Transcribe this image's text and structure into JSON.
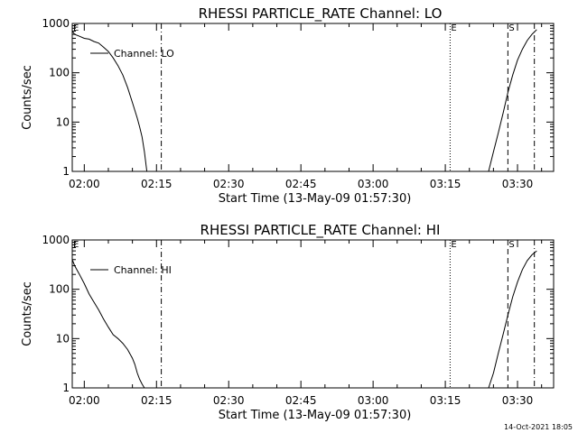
{
  "chart_data": [
    {
      "type": "line",
      "title": "RHESSI PARTICLE_RATE Channel: LO",
      "xlabel": "Start Time (13-May-09 01:57:30)",
      "ylabel": "Counts/sec",
      "yscale": "log",
      "ylim": [
        1,
        1000
      ],
      "xlim": [
        "01:57:30",
        "03:37:30"
      ],
      "x_ticks": [
        "02:00",
        "02:15",
        "02:30",
        "02:45",
        "03:00",
        "03:15",
        "03:30"
      ],
      "y_ticks": [
        "1",
        "10",
        "100",
        "1000"
      ],
      "legend": {
        "label": "Channel: LO",
        "placement": "top-left"
      },
      "markers": [
        {
          "label": "E",
          "time": "01:57:30",
          "style": "dotted"
        },
        {
          "label": "",
          "time": "02:16:00",
          "style": "dash-dot"
        },
        {
          "label": "E",
          "time": "03:16:00",
          "style": "dotted"
        },
        {
          "label": "S",
          "time": "03:28:00",
          "style": "dashed"
        },
        {
          "label": "",
          "time": "03:33:30",
          "style": "dash-dot"
        }
      ],
      "segments": [
        {
          "x": [
            "01:57:30",
            "01:58:00",
            "01:59:00",
            "02:00:00",
            "02:01:00",
            "02:02:00",
            "02:03:00",
            "02:04:00",
            "02:05:00",
            "02:06:00",
            "02:07:00",
            "02:08:00",
            "02:09:00",
            "02:10:00",
            "02:11:00",
            "02:11:30",
            "02:12:00",
            "02:12:30",
            "02:13:00"
          ],
          "y": [
            700,
            600,
            550,
            500,
            480,
            430,
            400,
            330,
            270,
            200,
            140,
            90,
            50,
            25,
            12,
            8,
            5,
            2.5,
            1
          ]
        },
        {
          "x": [
            "03:24:00",
            "03:25:00",
            "03:26:00",
            "03:27:00",
            "03:28:00",
            "03:29:00",
            "03:30:00",
            "03:31:00",
            "03:32:00",
            "03:33:00",
            "03:34:00"
          ],
          "y": [
            1,
            2.5,
            6,
            15,
            40,
            90,
            180,
            300,
            450,
            600,
            750
          ]
        }
      ]
    },
    {
      "type": "line",
      "title": "RHESSI PARTICLE_RATE Channel: HI",
      "xlabel": "Start Time (13-May-09 01:57:30)",
      "ylabel": "Counts/sec",
      "yscale": "log",
      "ylim": [
        1,
        1000
      ],
      "xlim": [
        "01:57:30",
        "03:37:30"
      ],
      "x_ticks": [
        "02:00",
        "02:15",
        "02:30",
        "02:45",
        "03:00",
        "03:15",
        "03:30"
      ],
      "y_ticks": [
        "1",
        "10",
        "100",
        "1000"
      ],
      "legend": {
        "label": "Channel: HI",
        "placement": "top-left"
      },
      "markers": [
        {
          "label": "E",
          "time": "01:57:30",
          "style": "dotted"
        },
        {
          "label": "",
          "time": "02:16:00",
          "style": "dash-dot"
        },
        {
          "label": "E",
          "time": "03:16:00",
          "style": "dotted"
        },
        {
          "label": "S",
          "time": "03:28:00",
          "style": "dashed"
        },
        {
          "label": "",
          "time": "03:33:30",
          "style": "dash-dot"
        }
      ],
      "segments": [
        {
          "x": [
            "01:57:30",
            "01:58:00",
            "01:59:00",
            "02:00:00",
            "02:01:00",
            "02:02:00",
            "02:03:00",
            "02:04:00",
            "02:05:00",
            "02:06:00",
            "02:07:00",
            "02:08:00",
            "02:09:00",
            "02:10:00",
            "02:10:30",
            "02:11:00",
            "02:11:30",
            "02:12:00",
            "02:12:30"
          ],
          "y": [
            400,
            300,
            200,
            130,
            80,
            55,
            38,
            25,
            17,
            12,
            10,
            8,
            6,
            4,
            3,
            2,
            1.5,
            1.2,
            1
          ]
        },
        {
          "x": [
            "03:24:00",
            "03:25:00",
            "03:26:00",
            "03:27:00",
            "03:28:00",
            "03:29:00",
            "03:30:00",
            "03:31:00",
            "03:32:00",
            "03:33:00",
            "03:34:00"
          ],
          "y": [
            1,
            2,
            5,
            12,
            30,
            70,
            140,
            250,
            380,
            500,
            600
          ]
        }
      ]
    }
  ],
  "footer": "14-Oct-2021 18:05"
}
